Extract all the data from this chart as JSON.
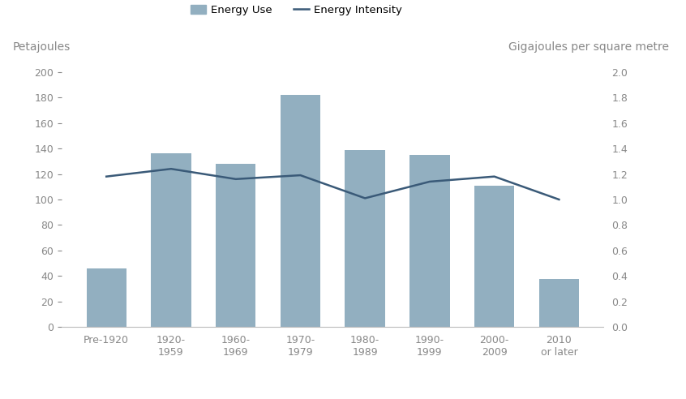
{
  "categories": [
    "Pre-1920",
    "1920-\n1959",
    "1960-\n1969",
    "1970-\n1979",
    "1980-\n1989",
    "1990-\n1999",
    "2000-\n2009",
    "2010\nor later"
  ],
  "energy_use": [
    46,
    136,
    128,
    182,
    139,
    135,
    111,
    38
  ],
  "energy_intensity": [
    1.18,
    1.24,
    1.16,
    1.19,
    1.01,
    1.14,
    1.18,
    1.0
  ],
  "bar_color": "#92afc0",
  "line_color": "#3a5a78",
  "ylabel_left": "Petajoules",
  "ylabel_right": "Gigajoules per square metre",
  "ylim_left": [
    0,
    200
  ],
  "ylim_right": [
    0.0,
    2.0
  ],
  "yticks_left": [
    0,
    20,
    40,
    60,
    80,
    100,
    120,
    140,
    160,
    180,
    200
  ],
  "yticks_right": [
    0.0,
    0.2,
    0.4,
    0.6,
    0.8,
    1.0,
    1.2,
    1.4,
    1.6,
    1.8,
    2.0
  ],
  "legend_bar_label": "Energy Use",
  "legend_line_label": "Energy Intensity",
  "background_color": "#ffffff",
  "tick_color": "#888888",
  "label_color": "#888888"
}
